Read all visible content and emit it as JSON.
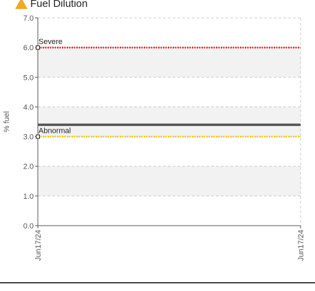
{
  "header": {
    "title": "Fuel Dilution",
    "icon": "warning-triangle-icon",
    "icon_color": "#f5a623"
  },
  "chart_data": {
    "type": "line",
    "title": "Fuel Dilution",
    "ylabel": "% fuel",
    "xlabel": "",
    "ylim": [
      0,
      7
    ],
    "y_ticks": [
      "0.0",
      "1.0",
      "2.0",
      "3.0",
      "4.0",
      "5.0",
      "6.0",
      "7.0"
    ],
    "x_ticks": [
      "Jun17/24",
      "Jun17/24"
    ],
    "grid": true,
    "series": [
      {
        "values": [
          3.4,
          3.4
        ],
        "color": "#555555"
      }
    ],
    "thresholds": [
      {
        "name": "Severe",
        "value": 6.0,
        "color": "#e8231f"
      },
      {
        "name": "Abnormal",
        "value": 3.0,
        "color": "#f2c811"
      }
    ]
  }
}
